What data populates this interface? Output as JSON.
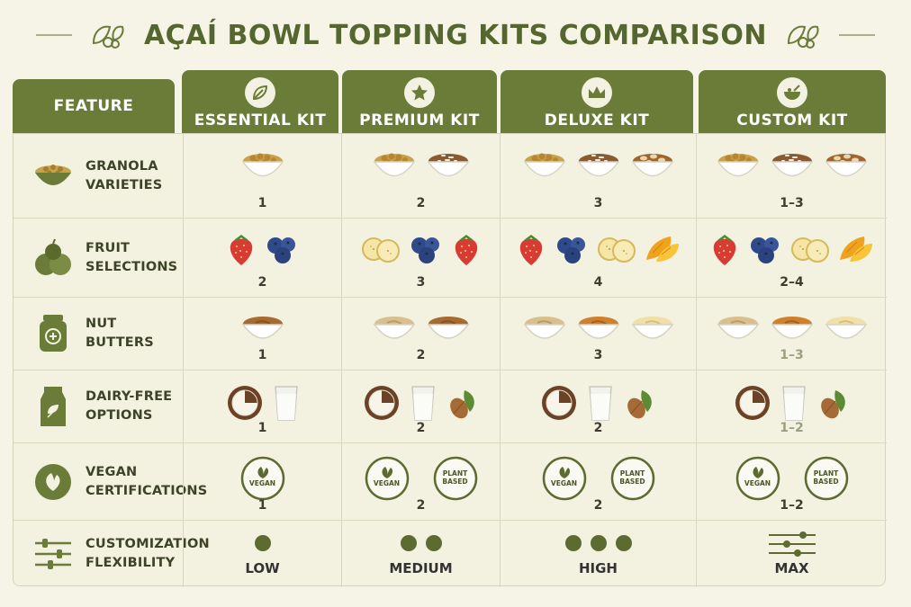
{
  "title": "AÇAÍ BOWL TOPPING KITS COMPARISON",
  "colors": {
    "header_green": "#6b7b38",
    "background": "#f5f4e6",
    "accent_dark": "#56662f"
  },
  "header": {
    "feature_label": "FEATURE",
    "kits": [
      {
        "label": "ESSENTIAL KIT",
        "icon": "leaf-icon"
      },
      {
        "label": "PREMIUM KIT",
        "icon": "star-icon"
      },
      {
        "label": "DELUXE KIT",
        "icon": "crown-icon"
      },
      {
        "label": "CUSTOM KIT",
        "icon": "bowl-spoon-icon"
      }
    ]
  },
  "rows": [
    {
      "label_line1": "GRANOLA",
      "label_line2": "VARIETIES",
      "icon": "granola-bowl-icon",
      "cells": [
        {
          "items": [
            "granola-bowl"
          ],
          "count": "1"
        },
        {
          "items": [
            "granola-bowl",
            "coconut-granola-bowl"
          ],
          "count": "2"
        },
        {
          "items": [
            "granola-bowl",
            "coconut-granola-bowl",
            "nut-granola-bowl"
          ],
          "count": "3"
        },
        {
          "items": [
            "granola-bowl",
            "coconut-granola-bowl",
            "nut-granola-bowl"
          ],
          "count": "1–3"
        }
      ]
    },
    {
      "label_line1": "FRUIT",
      "label_line2": "SELECTIONS",
      "icon": "fruits-icon",
      "cells": [
        {
          "items": [
            "strawberry",
            "blueberries"
          ],
          "count": "2"
        },
        {
          "items": [
            "banana",
            "blueberries",
            "strawberry"
          ],
          "count": "3"
        },
        {
          "items": [
            "strawberry",
            "blueberries",
            "banana",
            "mango"
          ],
          "count": "4"
        },
        {
          "items": [
            "strawberry",
            "blueberries",
            "banana",
            "mango"
          ],
          "count": "2–4"
        }
      ]
    },
    {
      "label_line1": "NUT",
      "label_line2": "BUTTERS",
      "icon": "nut-butter-jar-icon",
      "cells": [
        {
          "items": [
            "almond-butter"
          ],
          "count": "1"
        },
        {
          "items": [
            "cashew-butter",
            "almond-butter"
          ],
          "count": "2"
        },
        {
          "items": [
            "cashew-butter",
            "sunflower-butter",
            "coconut-butter"
          ],
          "count": "3"
        },
        {
          "items": [
            "cashew-butter",
            "sunflower-butter",
            "coconut-butter"
          ],
          "count": "1–3",
          "faded": true
        }
      ]
    },
    {
      "label_line1": "DAIRY-FREE",
      "label_line2": "OPTIONS",
      "icon": "milk-carton-icon",
      "cells": [
        {
          "items": [
            "coconut",
            "milk-glass"
          ],
          "count": "1"
        },
        {
          "items": [
            "coconut",
            "milk-glass",
            "almond"
          ],
          "count": "2"
        },
        {
          "items": [
            "coconut",
            "milk-glass",
            "almond"
          ],
          "count": "2"
        },
        {
          "items": [
            "coconut",
            "milk-glass",
            "almond"
          ],
          "count": "1–2",
          "faded": true
        }
      ]
    },
    {
      "label_line1": "VEGAN",
      "label_line2": "CERTIFICATIONS",
      "icon": "vegan-leaf-icon",
      "cells": [
        {
          "badges": [
            {
              "line1": "VEGAN",
              "line2": ""
            }
          ],
          "count": "1"
        },
        {
          "badges": [
            {
              "line1": "VEGAN",
              "line2": ""
            },
            {
              "line1": "PLANT",
              "line2": "BASED"
            }
          ],
          "count": "2"
        },
        {
          "badges": [
            {
              "line1": "VEGAN",
              "line2": ""
            },
            {
              "line1": "PLANT",
              "line2": "BASED"
            }
          ],
          "count": "2"
        },
        {
          "badges": [
            {
              "line1": "VEGAN",
              "line2": ""
            },
            {
              "line1": "PLANT",
              "line2": "BASED"
            }
          ],
          "count": "1–2"
        }
      ]
    },
    {
      "label_line1": "CUSTOMIZATION",
      "label_line2": "FLEXIBILITY",
      "icon": "sliders-icon",
      "cells": [
        {
          "dots": 1,
          "level": "LOW"
        },
        {
          "dots": 2,
          "level": "MEDIUM"
        },
        {
          "dots": 3,
          "level": "HIGH"
        },
        {
          "sliders": true,
          "level": "MAX"
        }
      ]
    }
  ]
}
